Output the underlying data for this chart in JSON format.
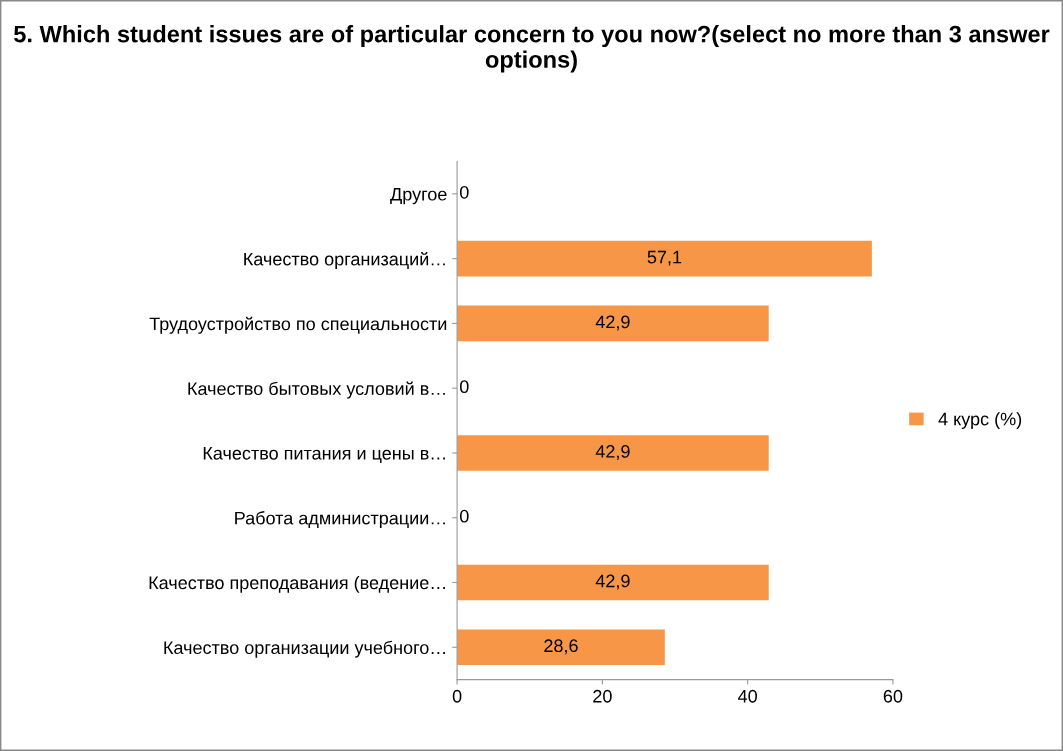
{
  "chart_data": {
    "type": "bar",
    "orientation": "horizontal",
    "title": "5. Which student issues are of particular concern to you now?(select no more than 3 answer options)",
    "categories": [
      "Другое",
      "Качество организаций…",
      "Трудоустройство по специальности",
      "Качество бытовых условий в…",
      "Качество питания и цены в…",
      "Работа администрации…",
      "Качество преподавания (ведение…",
      "Качество организации учебного…"
    ],
    "series": [
      {
        "name": "4 курс (%)",
        "color": "#f79646",
        "values": [
          0,
          57.1,
          42.9,
          0,
          42.9,
          0,
          42.9,
          28.6
        ],
        "value_labels": [
          "0",
          "57,1",
          "42,9",
          "0",
          "42,9",
          "0",
          "42,9",
          "28,6"
        ]
      }
    ],
    "xlim": [
      0,
      60
    ],
    "xticks": [
      0,
      20,
      40,
      60
    ],
    "legend": "right"
  }
}
